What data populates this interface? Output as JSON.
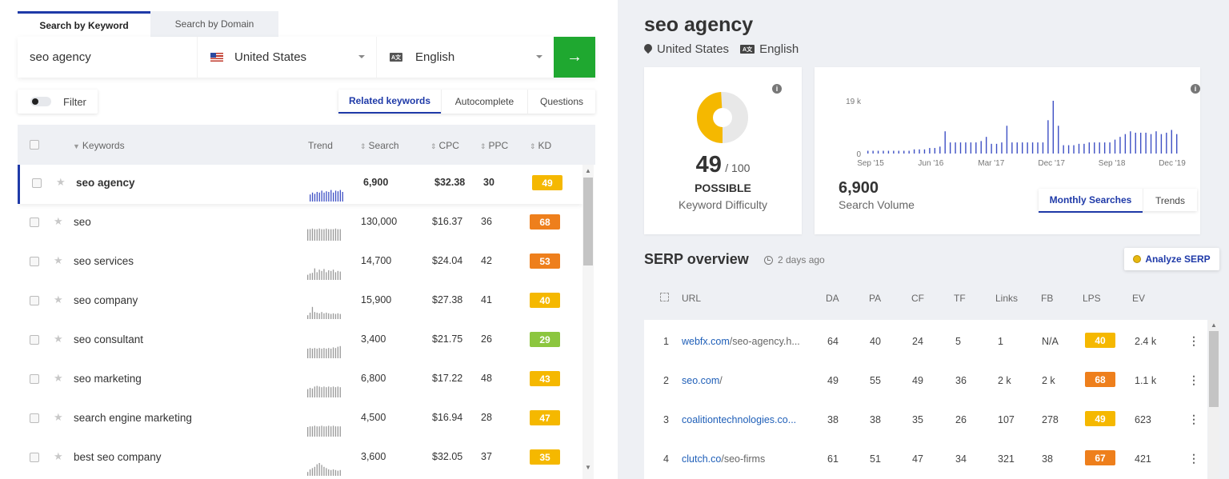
{
  "tabs": [
    {
      "label": "Search by Keyword",
      "active": true
    },
    {
      "label": "Search by Domain",
      "active": false
    }
  ],
  "search": {
    "keyword": "seo agency",
    "country": "United States",
    "language": "English",
    "go_icon": "arrow-right-icon",
    "go_arrow": "→"
  },
  "filter_label": "Filter",
  "view_tabs": [
    "Related keywords",
    "Autocomplete",
    "Questions"
  ],
  "table": {
    "headers": {
      "keywords": "Keywords",
      "trend": "Trend",
      "search": "Search",
      "cpc": "CPC",
      "ppc": "PPC",
      "kd": "KD"
    },
    "rows": [
      {
        "keyword": "seo agency",
        "search": "6,900",
        "cpc": "$32.38",
        "ppc": "30",
        "kd": "49",
        "kd_color": "#f5b800",
        "trend": [
          0.55,
          0.7,
          0.6,
          0.75,
          0.7,
          0.85,
          0.7,
          0.8,
          0.75,
          0.9,
          0.7,
          0.85,
          0.8,
          0.9,
          0.75
        ]
      },
      {
        "keyword": "seo",
        "search": "130,000",
        "cpc": "$16.37",
        "ppc": "36",
        "kd": "68",
        "kd_color": "#ee7f1c",
        "trend": [
          0.9,
          0.9,
          0.95,
          0.9,
          0.9,
          0.95,
          0.9,
          0.9,
          0.95,
          0.9,
          0.9,
          0.9,
          0.95,
          0.9,
          0.9
        ]
      },
      {
        "keyword": "seo services",
        "search": "14,700",
        "cpc": "$24.04",
        "ppc": "42",
        "kd": "53",
        "kd_color": "#ee7f1c",
        "trend": [
          0.4,
          0.5,
          0.55,
          0.9,
          0.6,
          0.8,
          0.7,
          0.85,
          0.6,
          0.75,
          0.7,
          0.8,
          0.6,
          0.7,
          0.65
        ]
      },
      {
        "keyword": "seo company",
        "search": "15,900",
        "cpc": "$27.38",
        "ppc": "41",
        "kd": "40",
        "kd_color": "#f5b800",
        "trend": [
          0.3,
          0.5,
          0.95,
          0.55,
          0.5,
          0.45,
          0.55,
          0.45,
          0.5,
          0.45,
          0.4,
          0.45,
          0.4,
          0.45,
          0.4
        ]
      },
      {
        "keyword": "seo consultant",
        "search": "3,400",
        "cpc": "$21.75",
        "ppc": "26",
        "kd": "29",
        "kd_color": "#8cc63f",
        "trend": [
          0.75,
          0.8,
          0.75,
          0.8,
          0.75,
          0.8,
          0.75,
          0.8,
          0.75,
          0.8,
          0.75,
          0.85,
          0.8,
          0.9,
          0.95
        ]
      },
      {
        "keyword": "seo marketing",
        "search": "6,800",
        "cpc": "$17.22",
        "ppc": "48",
        "kd": "43",
        "kd_color": "#f5b800",
        "trend": [
          0.65,
          0.75,
          0.7,
          0.85,
          0.9,
          0.85,
          0.8,
          0.85,
          0.8,
          0.85,
          0.8,
          0.85,
          0.8,
          0.85,
          0.8
        ]
      },
      {
        "keyword": "search engine marketing",
        "search": "4,500",
        "cpc": "$16.94",
        "ppc": "28",
        "kd": "47",
        "kd_color": "#f5b800",
        "trend": [
          0.75,
          0.8,
          0.8,
          0.85,
          0.8,
          0.8,
          0.85,
          0.8,
          0.8,
          0.85,
          0.8,
          0.85,
          0.8,
          0.8,
          0.8
        ]
      },
      {
        "keyword": "best seo company",
        "search": "3,600",
        "cpc": "$32.05",
        "ppc": "37",
        "kd": "35",
        "kd_color": "#f5b800",
        "trend": [
          0.3,
          0.5,
          0.6,
          0.7,
          0.9,
          1,
          0.85,
          0.7,
          0.6,
          0.5,
          0.45,
          0.5,
          0.45,
          0.4,
          0.45
        ]
      }
    ]
  },
  "right": {
    "title": "seo agency",
    "country": "United States",
    "language": "English",
    "kd": {
      "value": "49",
      "max": "/ 100",
      "rating": "POSSIBLE",
      "label": "Keyword Difficulty",
      "fraction": 0.49,
      "color": "#f5b800"
    },
    "volume": {
      "value": "6,900",
      "label": "Search Volume",
      "tabs": [
        "Monthly Searches",
        "Trends"
      ]
    },
    "serp": {
      "title": "SERP overview",
      "time": "2 days ago",
      "analyze_label": "Analyze SERP",
      "headers": [
        "URL",
        "DA",
        "PA",
        "CF",
        "TF",
        "Links",
        "FB",
        "LPS",
        "EV"
      ],
      "rows": [
        {
          "n": "1",
          "domain": "webfx.com",
          "path": "/seo-agency.h...",
          "da": "64",
          "pa": "40",
          "cf": "24",
          "tf": "5",
          "links": "1",
          "fb": "N/A",
          "lps": "40",
          "lps_color": "#f5b800",
          "ev": "2.4 k"
        },
        {
          "n": "2",
          "domain": "seo.com",
          "path": "/",
          "da": "49",
          "pa": "55",
          "cf": "49",
          "tf": "36",
          "links": "2 k",
          "fb": "2 k",
          "lps": "68",
          "lps_color": "#ee7f1c",
          "ev": "1.1 k"
        },
        {
          "n": "3",
          "domain": "coalitiontechnologies.co...",
          "path": "",
          "da": "38",
          "pa": "38",
          "cf": "35",
          "tf": "26",
          "links": "107",
          "fb": "278",
          "lps": "49",
          "lps_color": "#f5b800",
          "ev": "623"
        },
        {
          "n": "4",
          "domain": "clutch.co",
          "path": "/seo-firms",
          "da": "61",
          "pa": "51",
          "cf": "47",
          "tf": "34",
          "links": "321",
          "fb": "38",
          "lps": "67",
          "lps_color": "#ee7f1c",
          "ev": "421"
        }
      ]
    }
  },
  "chart_data": {
    "type": "bar",
    "title": "",
    "xlabel": "",
    "ylabel": "",
    "ylim": [
      0,
      19000
    ],
    "y_ticks": [
      "0",
      "19 k"
    ],
    "x_ticks": [
      "Sep '15",
      "Jun '16",
      "Mar '17",
      "Dec '17",
      "Sep '18",
      "Dec '19"
    ],
    "color": "#3d4fc4",
    "values": [
      1000,
      1000,
      1000,
      1000,
      1000,
      1000,
      1000,
      1000,
      1000,
      1500,
      1500,
      1500,
      2000,
      2000,
      2500,
      8000,
      4000,
      4000,
      4000,
      4000,
      4000,
      4000,
      4500,
      6000,
      3500,
      3500,
      4000,
      10000,
      4000,
      4000,
      4000,
      4000,
      4000,
      4000,
      4000,
      12000,
      19000,
      10000,
      3000,
      3000,
      3000,
      3500,
      3500,
      4000,
      4000,
      4000,
      4000,
      4000,
      5000,
      6000,
      7000,
      8000,
      7500,
      7500,
      7500,
      7000,
      8000,
      7000,
      7500,
      8500,
      7000
    ]
  }
}
